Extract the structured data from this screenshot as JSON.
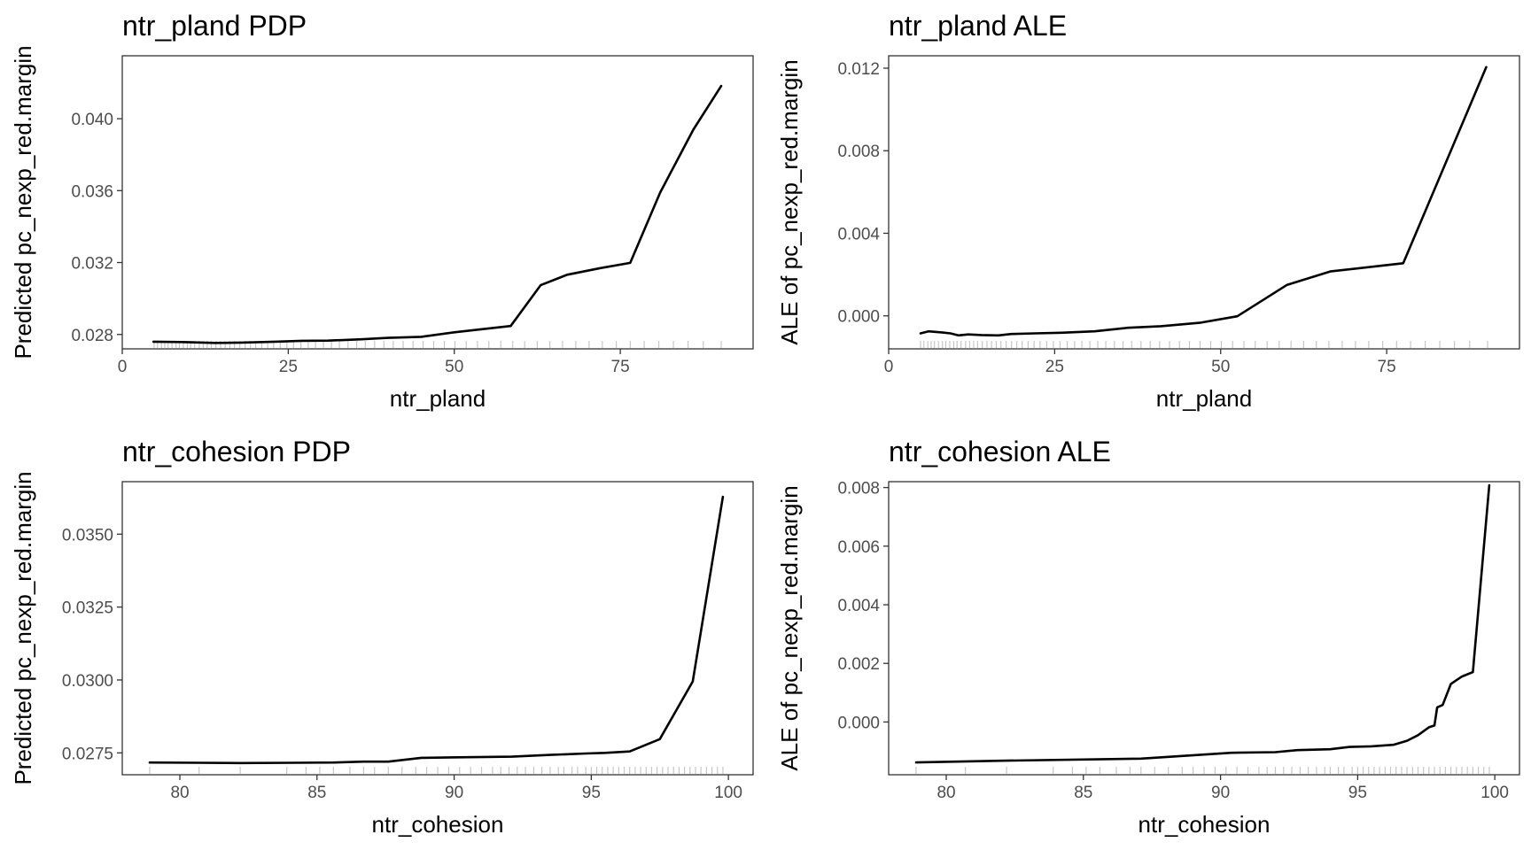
{
  "chart_data": [
    {
      "id": "pland-pdp",
      "type": "line",
      "title": "ntr_pland PDP",
      "xlabel": "ntr_pland",
      "ylabel": "Predicted pc_nexp_red.margin",
      "xlim": [
        0,
        95
      ],
      "ylim": [
        0.0272,
        0.0435
      ],
      "x_ticks": [
        0,
        25,
        50,
        75
      ],
      "x_tick_labels": [
        "0",
        "25",
        "50",
        "75"
      ],
      "y_ticks": [
        0.028,
        0.032,
        0.036,
        0.04
      ],
      "y_tick_labels": [
        "0.028",
        "0.032",
        "0.036",
        "0.040"
      ],
      "grid": false,
      "series": [
        {
          "x": [
            4.7,
            9,
            14,
            18,
            23,
            27,
            31,
            36,
            40,
            45,
            50,
            54,
            58.5,
            63,
            67,
            72,
            76.5,
            81,
            86,
            90.2
          ],
          "y": [
            0.0276,
            0.02758,
            0.02753,
            0.02755,
            0.0276,
            0.02765,
            0.02766,
            0.02773,
            0.02781,
            0.02787,
            0.02812,
            0.02829,
            0.02847,
            0.03074,
            0.03132,
            0.03169,
            0.03198,
            0.03589,
            0.03939,
            0.04182
          ]
        }
      ],
      "rug": [
        4.8,
        5.3,
        5.9,
        6.4,
        6.9,
        7.5,
        8.1,
        8.6,
        9.2,
        9.8,
        10.3,
        10.9,
        11.6,
        12.2,
        12.8,
        13.4,
        14.1,
        14.8,
        15.5,
        16.2,
        16.9,
        17.7,
        18.5,
        19.3,
        20.1,
        21,
        21.9,
        22.8,
        23.8,
        24.8,
        25.8,
        26.9,
        28,
        29.1,
        30.3,
        31.5,
        32.7,
        34,
        35.3,
        36.6,
        38,
        39.4,
        40.8,
        42.3,
        43.8,
        45.3,
        46.9,
        48.5,
        50.1,
        51.8,
        53.5,
        55.2,
        57,
        58.8,
        60.6,
        62.5,
        64.4,
        66.3,
        68.3,
        70.3,
        72.3,
        74.4,
        76.5,
        78.6,
        80.8,
        83,
        85.2,
        87.5,
        90.2
      ]
    },
    {
      "id": "pland-ale",
      "type": "line",
      "title": "ntr_pland ALE",
      "xlabel": "ntr_pland",
      "ylabel": "ALE of pc_nexp_red.margin",
      "xlim": [
        0,
        95
      ],
      "ylim": [
        -0.0016,
        0.0126
      ],
      "x_ticks": [
        0,
        25,
        50,
        75
      ],
      "x_tick_labels": [
        "0",
        "25",
        "50",
        "75"
      ],
      "y_ticks": [
        0,
        0.004,
        0.008,
        0.012
      ],
      "y_tick_labels": [
        "0.000",
        "0.004",
        "0.008",
        "0.012"
      ],
      "grid": false,
      "series": [
        {
          "x": [
            4.8,
            6,
            8,
            9.3,
            10.5,
            12,
            14,
            16.5,
            18.5,
            22,
            26,
            31,
            36,
            41,
            47,
            52.5,
            60,
            66.5,
            77.5,
            90
          ],
          "y": [
            -0.00085,
            -0.00075,
            -0.0008,
            -0.00085,
            -0.00095,
            -0.0009,
            -0.00093,
            -0.00095,
            -0.00088,
            -0.00085,
            -0.00082,
            -0.00075,
            -0.00058,
            -0.0005,
            -0.00033,
            -2e-05,
            0.0015,
            0.00215,
            0.00255,
            0.01205
          ]
        }
      ],
      "rug": [
        4.8,
        5.3,
        5.9,
        6.4,
        6.9,
        7.5,
        8.1,
        8.6,
        9.2,
        9.8,
        10.3,
        10.9,
        11.6,
        12.2,
        12.8,
        13.4,
        14.1,
        14.8,
        15.5,
        16.2,
        16.9,
        17.7,
        18.5,
        19.3,
        20.1,
        21,
        21.9,
        22.8,
        23.8,
        24.8,
        25.8,
        26.9,
        28,
        29.1,
        30.3,
        31.5,
        32.7,
        34,
        35.3,
        36.6,
        38,
        39.4,
        40.8,
        42.3,
        43.8,
        45.3,
        46.9,
        48.5,
        50.1,
        51.8,
        53.5,
        55.2,
        57,
        58.8,
        60.6,
        62.5,
        64.4,
        66.3,
        68.3,
        70.3,
        72.3,
        74.4,
        76.5,
        78.6,
        80.8,
        83,
        85.2,
        87.5,
        90.2
      ]
    },
    {
      "id": "cohesion-pdp",
      "type": "line",
      "title": "ntr_cohesion PDP",
      "xlabel": "ntr_cohesion",
      "ylabel": "Predicted pc_nexp_red.margin",
      "xlim": [
        77.9,
        100.9
      ],
      "ylim": [
        0.02675,
        0.0368
      ],
      "x_ticks": [
        80,
        85,
        90,
        95,
        100
      ],
      "x_tick_labels": [
        "80",
        "85",
        "90",
        "95",
        "100"
      ],
      "y_ticks": [
        0.0275,
        0.03,
        0.0325,
        0.035
      ],
      "y_tick_labels": [
        "0.0275",
        "0.0300",
        "0.0325",
        "0.0350"
      ],
      "grid": false,
      "series": [
        {
          "x": [
            78.9,
            80.7,
            82.2,
            84.1,
            85.6,
            86.7,
            87.6,
            88.8,
            90.5,
            92.1,
            93.5,
            94.8,
            95.5,
            96.4,
            97.5,
            98.7,
            99.8
          ],
          "y": [
            0.02717,
            0.02716,
            0.02715,
            0.02716,
            0.02717,
            0.0272,
            0.0272,
            0.02733,
            0.02735,
            0.02737,
            0.02743,
            0.02748,
            0.0275,
            0.02755,
            0.02797,
            0.02995,
            0.03628
          ]
        }
      ],
      "rug": [
        78.9,
        80.7,
        82.2,
        83.9,
        84.6,
        85.1,
        85.6,
        86.2,
        86.7,
        87.1,
        87.6,
        88.1,
        88.6,
        89.0,
        89.4,
        89.8,
        90.2,
        90.6,
        91.0,
        91.4,
        91.7,
        92.0,
        92.3,
        92.6,
        92.9,
        93.2,
        93.5,
        93.8,
        94.0,
        94.3,
        94.5,
        94.8,
        95.0,
        95.2,
        95.4,
        95.6,
        95.8,
        96.0,
        96.2,
        96.4,
        96.6,
        96.8,
        97.0,
        97.2,
        97.4,
        97.6,
        97.8,
        98.0,
        98.2,
        98.4,
        98.6,
        98.8,
        99.0,
        99.2,
        99.4,
        99.6,
        99.8
      ]
    },
    {
      "id": "cohesion-ale",
      "type": "line",
      "title": "ntr_cohesion ALE",
      "xlabel": "ntr_cohesion",
      "ylabel": "ALE of pc_nexp_red.margin",
      "xlim": [
        77.9,
        100.9
      ],
      "ylim": [
        -0.0018,
        0.0082
      ],
      "x_ticks": [
        80,
        85,
        90,
        95,
        100
      ],
      "x_tick_labels": [
        "80",
        "85",
        "90",
        "95",
        "100"
      ],
      "y_ticks": [
        0,
        0.002,
        0.004,
        0.006,
        0.008
      ],
      "y_tick_labels": [
        "0.000",
        "0.002",
        "0.004",
        "0.006",
        "0.008"
      ],
      "grid": false,
      "series": [
        {
          "x": [
            78.9,
            82.2,
            87.1,
            90.4,
            92.0,
            92.8,
            94.0,
            94.7,
            95.5,
            96.3,
            96.8,
            97.2,
            97.6,
            97.8,
            97.9,
            98.1,
            98.4,
            98.8,
            99.2,
            99.8
          ],
          "y": [
            -0.00138,
            -0.00132,
            -0.00125,
            -0.00105,
            -0.00103,
            -0.00096,
            -0.00093,
            -0.00085,
            -0.00083,
            -0.00078,
            -0.00064,
            -0.00045,
            -0.00018,
            -0.00012,
            0.0005,
            0.00058,
            0.0013,
            0.00155,
            0.0017,
            0.00808
          ]
        }
      ],
      "rug": [
        78.9,
        80.7,
        82.2,
        83.9,
        84.6,
        85.1,
        85.6,
        86.2,
        86.7,
        87.1,
        87.6,
        88.1,
        88.6,
        89.0,
        89.4,
        89.8,
        90.2,
        90.6,
        91.0,
        91.4,
        91.7,
        92.0,
        92.3,
        92.6,
        92.9,
        93.2,
        93.5,
        93.8,
        94.0,
        94.3,
        94.5,
        94.8,
        95.0,
        95.2,
        95.4,
        95.6,
        95.8,
        96.0,
        96.2,
        96.4,
        96.6,
        96.8,
        97.0,
        97.2,
        97.4,
        97.6,
        97.8,
        98.0,
        98.2,
        98.4,
        98.6,
        98.8,
        99.0,
        99.2,
        99.4,
        99.6,
        99.8
      ]
    }
  ]
}
